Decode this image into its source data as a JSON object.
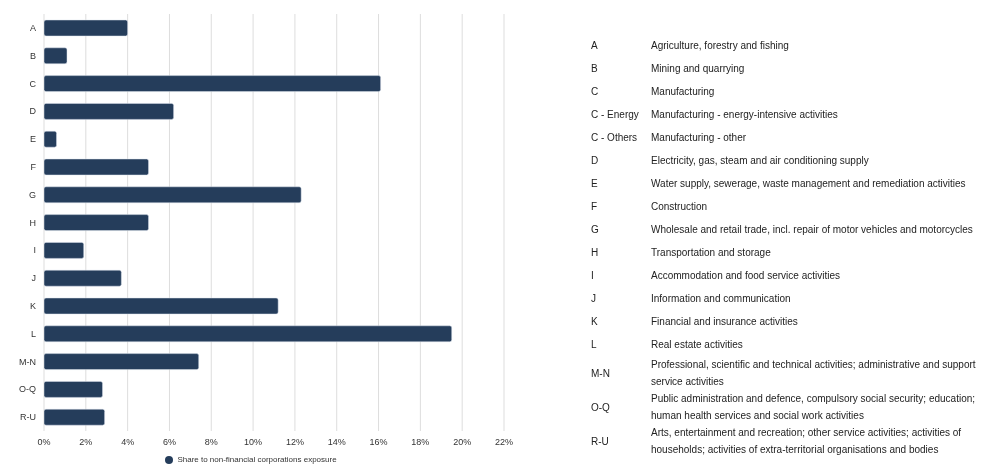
{
  "chart_data": [
    {
      "type": "bar",
      "orientation": "horizontal",
      "categories": [
        "A",
        "B",
        "C",
        "D",
        "E",
        "F",
        "G",
        "H",
        "I",
        "J",
        "K",
        "L",
        "M-N",
        "O-Q",
        "R-U"
      ],
      "series": [
        {
          "name": "Share to non-financial corporations exposure",
          "color": "#253d5b",
          "values": [
            4.0,
            1.1,
            16.1,
            6.2,
            0.6,
            5.0,
            12.3,
            5.0,
            1.9,
            3.7,
            11.2,
            19.5,
            7.4,
            2.8,
            2.9
          ]
        }
      ],
      "xlim": [
        0,
        22
      ],
      "xticks": [
        {
          "value": 0,
          "label": "0%"
        },
        {
          "value": 2,
          "label": "2%"
        },
        {
          "value": 4,
          "label": "4%"
        },
        {
          "value": 6,
          "label": "6%"
        },
        {
          "value": 8,
          "label": "8%"
        },
        {
          "value": 10,
          "label": "10%"
        },
        {
          "value": 12,
          "label": "12%"
        },
        {
          "value": 14,
          "label": "14%"
        },
        {
          "value": 16,
          "label": "16%"
        },
        {
          "value": 18,
          "label": "18%"
        },
        {
          "value": 20,
          "label": "20%"
        },
        {
          "value": 22,
          "label": "22%"
        }
      ],
      "grid": "x",
      "legend": "bottom",
      "marker": "circle"
    },
    {
      "type": "other",
      "annotations": [
        "A",
        "Agriculture, forestry and fishing",
        "B",
        "Mining and quarrying",
        "C",
        "Manufacturing",
        "C - Energy",
        "Manufacturing - energy-intensive activities",
        "C - Others",
        "Manufacturing - other",
        "D",
        "Electricity, gas, steam and air conditioning supply",
        "E",
        "Water supply, sewerage, waste management and remediation activities",
        "F",
        "Construction",
        "G",
        "Wholesale and retail trade, incl. repair of motor vehicles and motorcycles",
        "H",
        "Transportation and storage",
        "I",
        "Accommodation and food service activities",
        "J",
        "Information and communication",
        "K",
        "Financial and insurance activities",
        "L",
        "Real estate activities",
        "M-N",
        "Professional, scientific and technical activities; administrative and support service activities",
        "O-Q",
        "Public administration and defence, compulsory social security; education; human health services and social work activities",
        "R-U",
        "Arts, entertainment and recreation; other service activities; activities of households; activities of extra-territorial organisations and bodies"
      ]
    }
  ]
}
